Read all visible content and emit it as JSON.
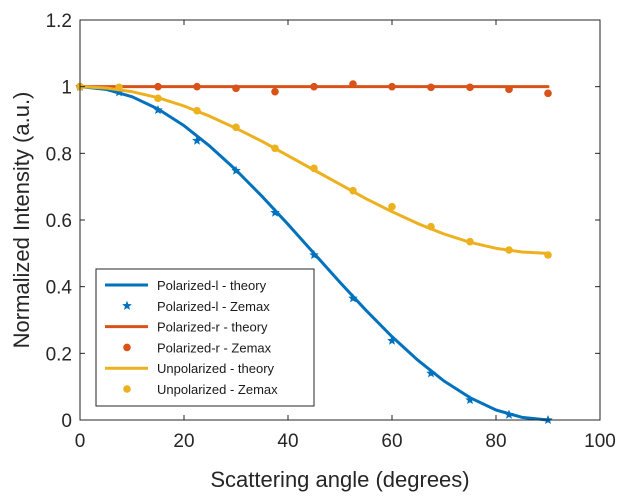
{
  "chart_data": {
    "type": "line",
    "title": "",
    "xlabel": "Scattering angle (degrees)",
    "ylabel": "Normalized Intensity (a.u.)",
    "xlim": [
      0,
      100
    ],
    "ylim": [
      0,
      1.2
    ],
    "xticks": [
      "0",
      "20",
      "40",
      "60",
      "80",
      "100"
    ],
    "yticks": [
      "0",
      "0.2",
      "0.4",
      "0.6",
      "0.8",
      "1",
      "1.2"
    ],
    "grid": false,
    "legend_position": "bottom-left",
    "series": [
      {
        "name": "Polarized-l - theory",
        "kind": "line",
        "color": "#0072BD",
        "x": [
          0,
          5,
          10,
          15,
          20,
          25,
          30,
          35,
          40,
          45,
          50,
          55,
          60,
          65,
          70,
          75,
          80,
          85,
          90
        ],
        "y": [
          1.0,
          0.992,
          0.97,
          0.933,
          0.883,
          0.821,
          0.75,
          0.671,
          0.587,
          0.5,
          0.413,
          0.329,
          0.25,
          0.179,
          0.117,
          0.067,
          0.03,
          0.008,
          0.0
        ]
      },
      {
        "name": "Polarized-l - Zemax",
        "kind": "markers",
        "marker": "pentagram",
        "color": "#0072BD",
        "x": [
          0,
          7.5,
          15,
          22.5,
          30,
          37.5,
          45,
          52.5,
          60,
          67.5,
          75,
          82.5,
          90
        ],
        "y": [
          1.0,
          0.983,
          0.93,
          0.838,
          0.748,
          0.622,
          0.495,
          0.365,
          0.238,
          0.14,
          0.06,
          0.016,
          0.0
        ]
      },
      {
        "name": "Polarized-r - theory",
        "kind": "line",
        "color": "#D95319",
        "x": [
          0,
          90
        ],
        "y": [
          1.0,
          1.0
        ]
      },
      {
        "name": "Polarized-r - Zemax",
        "kind": "markers",
        "marker": "circle",
        "color": "#D95319",
        "x": [
          0,
          15,
          22.5,
          30,
          37.5,
          45,
          52.5,
          60,
          67.5,
          75,
          82.5,
          90
        ],
        "y": [
          1.0,
          1.0,
          1.0,
          0.995,
          0.985,
          1.0,
          1.008,
          1.0,
          0.998,
          0.998,
          0.992,
          0.98
        ]
      },
      {
        "name": "Unpolarized - theory",
        "kind": "line",
        "color": "#EDB120",
        "x": [
          0,
          5,
          10,
          15,
          20,
          25,
          30,
          35,
          40,
          45,
          50,
          55,
          60,
          65,
          70,
          75,
          80,
          85,
          90
        ],
        "y": [
          1.0,
          0.996,
          0.985,
          0.967,
          0.942,
          0.911,
          0.875,
          0.836,
          0.793,
          0.75,
          0.707,
          0.664,
          0.625,
          0.589,
          0.558,
          0.533,
          0.515,
          0.504,
          0.5
        ]
      },
      {
        "name": "Unpolarized - Zemax",
        "kind": "markers",
        "marker": "circle",
        "color": "#EDB120",
        "x": [
          0,
          7.5,
          15,
          22.5,
          30,
          37.5,
          45,
          52.5,
          60,
          67.5,
          75,
          82.5,
          90
        ],
        "y": [
          1.0,
          0.998,
          0.965,
          0.928,
          0.878,
          0.815,
          0.755,
          0.688,
          0.64,
          0.58,
          0.535,
          0.51,
          0.495
        ]
      }
    ]
  }
}
